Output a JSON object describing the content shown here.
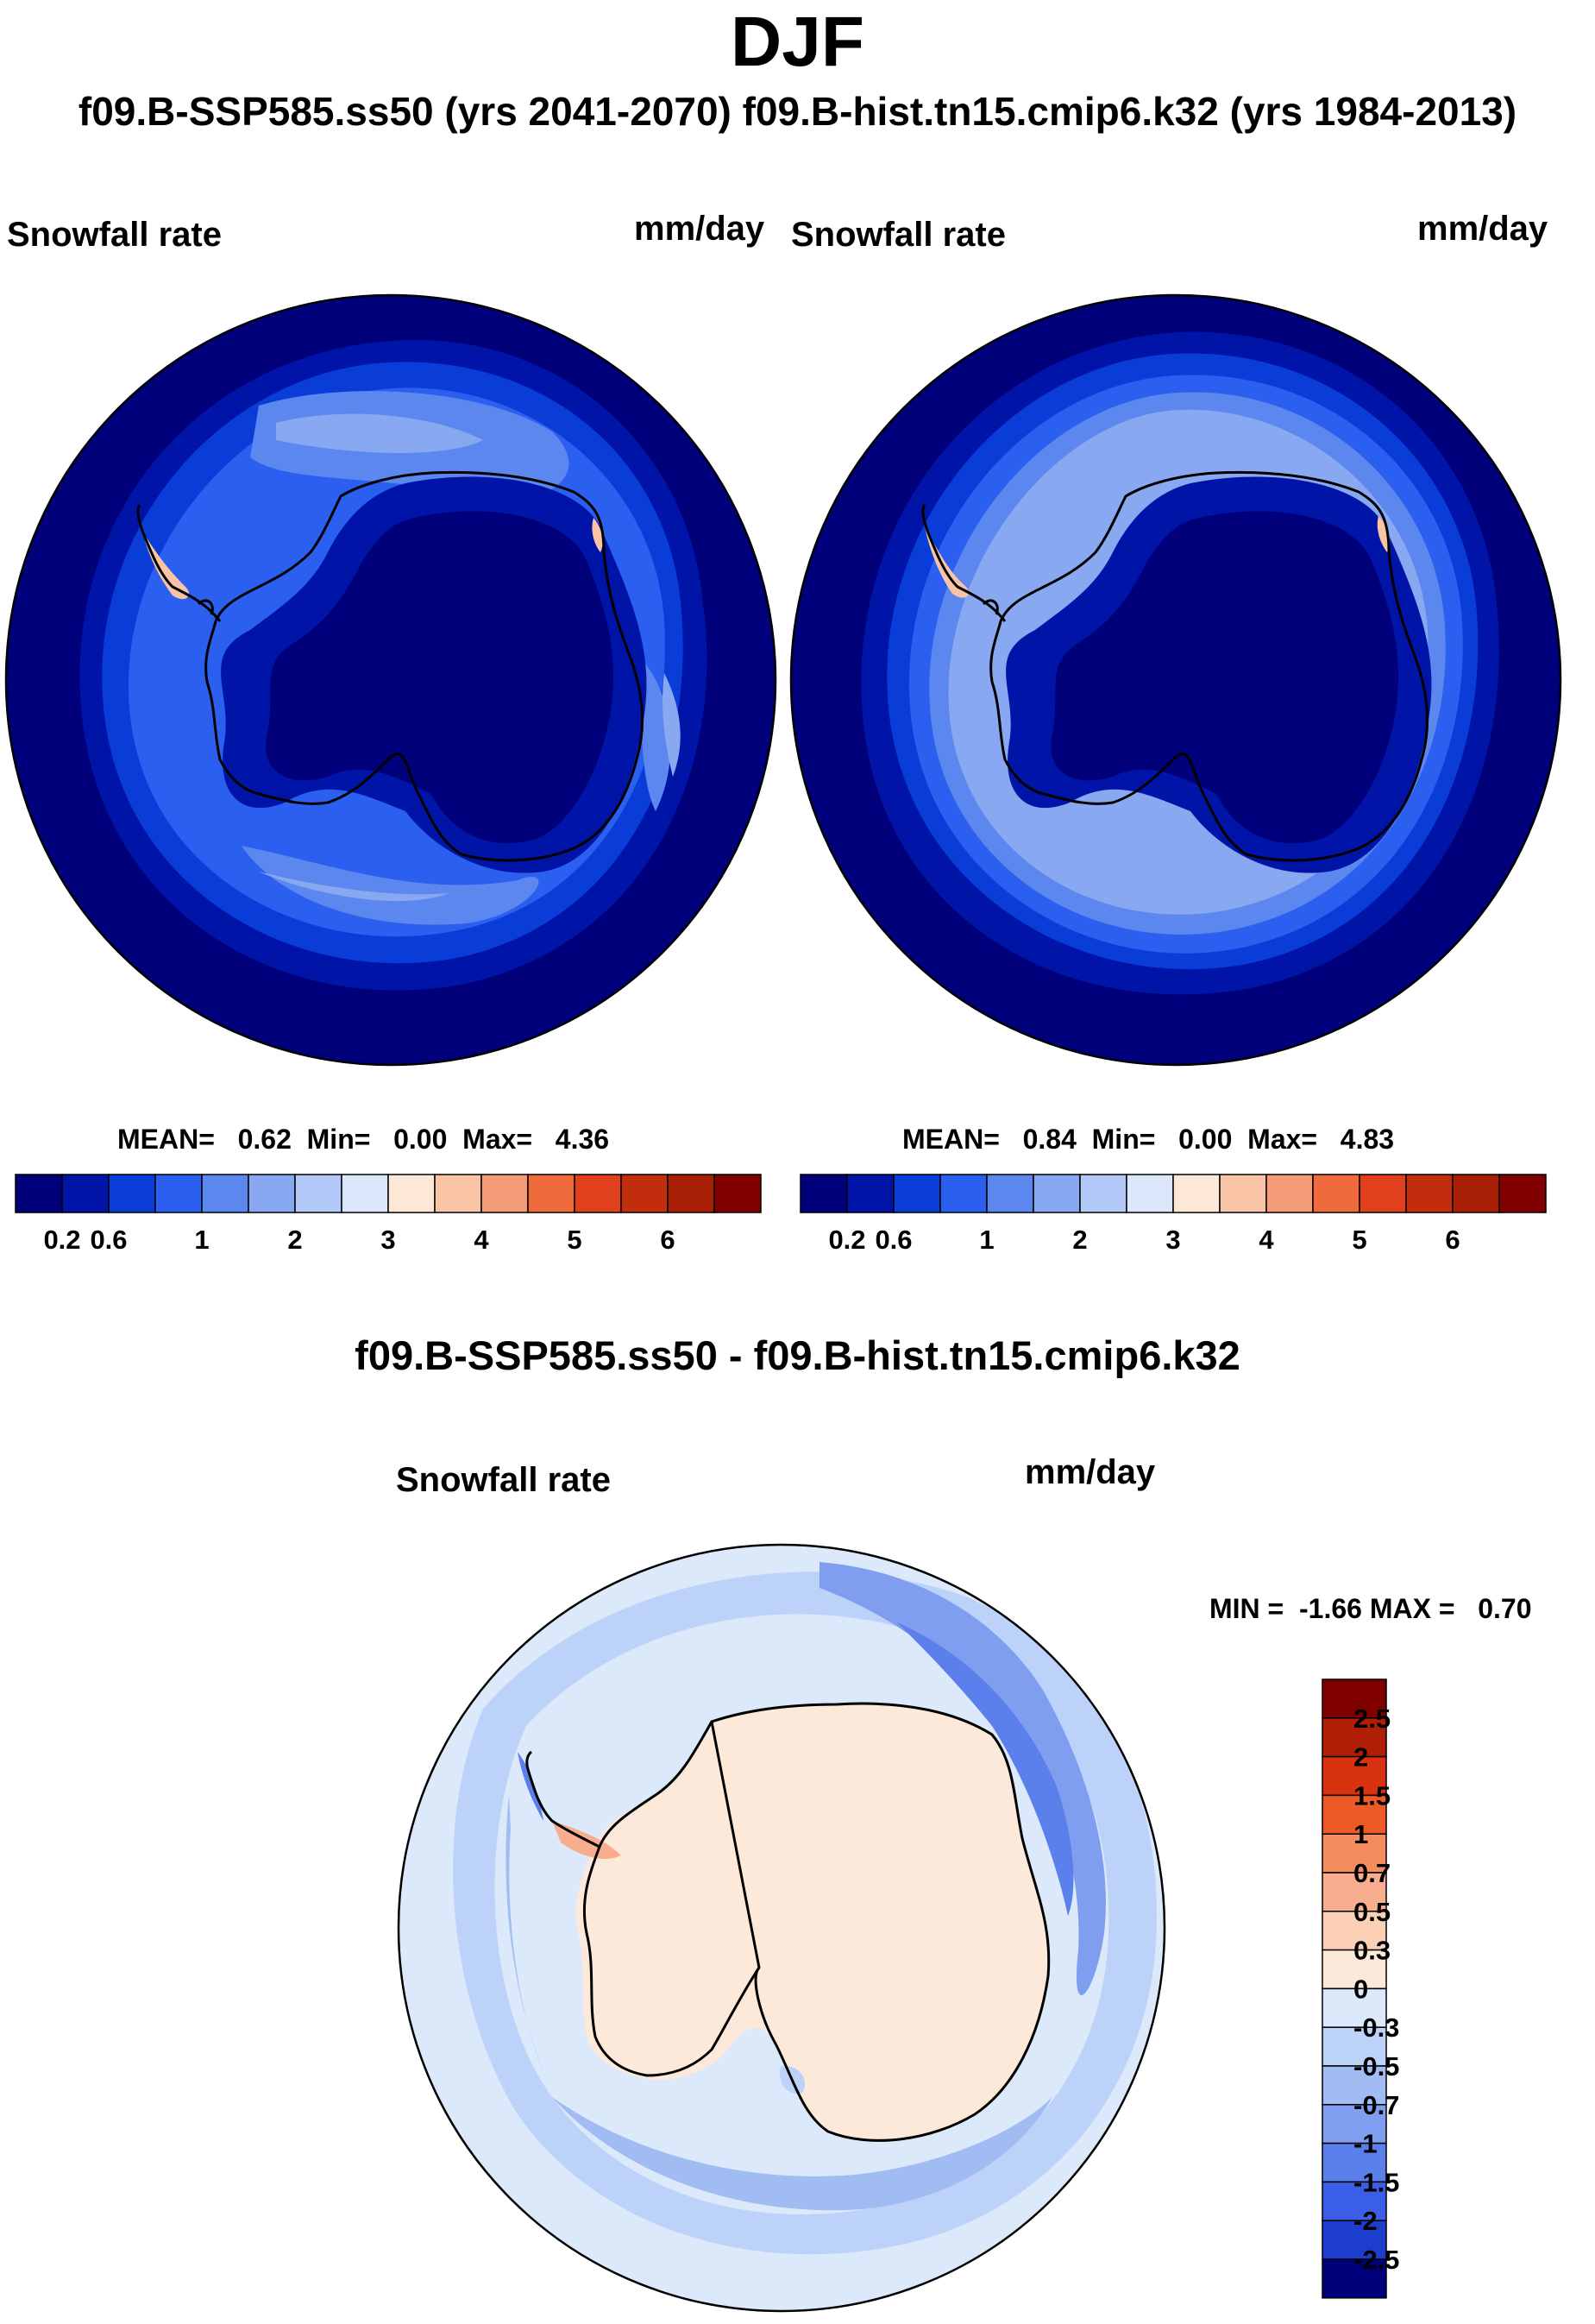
{
  "title": "DJF",
  "subtitle": "f09.B-SSP585.ss50 (yrs 2041-2070)  f09.B-hist.tn15.cmip6.k32 (yrs 1984-2013)",
  "panels": [
    {
      "label_left": "Snowfall rate",
      "label_right": "mm/day",
      "stats": {
        "mean": "0.62",
        "min": "0.00",
        "max": "4.36"
      },
      "stats_text": "MEAN=   0.62  Min=   0.00  Max=   4.36"
    },
    {
      "label_left": "Snowfall rate",
      "label_right": "mm/day",
      "stats": {
        "mean": "0.84",
        "min": "0.00",
        "max": "4.83"
      },
      "stats_text": "MEAN=   0.84  Min=   0.00  Max=   4.83"
    }
  ],
  "abs_colorbar": {
    "colors": [
      "#00007a",
      "#0015a8",
      "#0a3dd8",
      "#2b5ff0",
      "#5c87ee",
      "#88a8f2",
      "#b3c9f7",
      "#dce7fb",
      "#fde8d8",
      "#f9c3a6",
      "#f49c77",
      "#ef6b3b",
      "#e0401b",
      "#c22d0e",
      "#a81f06",
      "#800000"
    ],
    "ticks": [
      "0.2",
      "0.6",
      "1",
      "2",
      "3",
      "4",
      "5",
      "6"
    ]
  },
  "diff": {
    "title": "f09.B-SSP585.ss50 - f09.B-hist.tn15.cmip6.k32",
    "label_left": "Snowfall rate",
    "label_right": "mm/day",
    "minmax_text": "MIN =  -1.66 MAX =   0.70",
    "min": "-1.66",
    "max": "0.70"
  },
  "diff_colorbar": {
    "colors": [
      "#800000",
      "#b01e05",
      "#d83210",
      "#ed5a28",
      "#f58c5e",
      "#f8ae8e",
      "#fbd0b6",
      "#fde9d9",
      "#dce9fb",
      "#bcd2f8",
      "#a0bcf2",
      "#7f9ef0",
      "#5b80ec",
      "#3a5fe6",
      "#1d3dcc",
      "#00007a"
    ],
    "ticks": [
      "2.5",
      "2",
      "1.5",
      "1",
      "0.7",
      "0.5",
      "0.3",
      "0",
      "-0.3",
      "-0.5",
      "-0.7",
      "-1",
      "-1.5",
      "-2",
      "-2.5"
    ]
  },
  "map_colors": {
    "ocean_far": "#00007a",
    "ocean_b1": "#0015a8",
    "ocean_b2": "#0a3dd8",
    "ocean_b3": "#2b5ff0",
    "ocean_b4": "#5c87ee",
    "ocean_b5": "#88a8f2",
    "interior": "#00007a",
    "interior_b": "#0015a8",
    "coast_pos": "#f9c3a6",
    "diff_bg": "#dce9fb",
    "diff_b1": "#bcd2f8",
    "diff_b2": "#a0bcf2",
    "diff_b3": "#7f9ef0",
    "diff_b4": "#5b80ec",
    "diff_land": "#fde9d9",
    "diff_pos": "#f8ae8e"
  }
}
